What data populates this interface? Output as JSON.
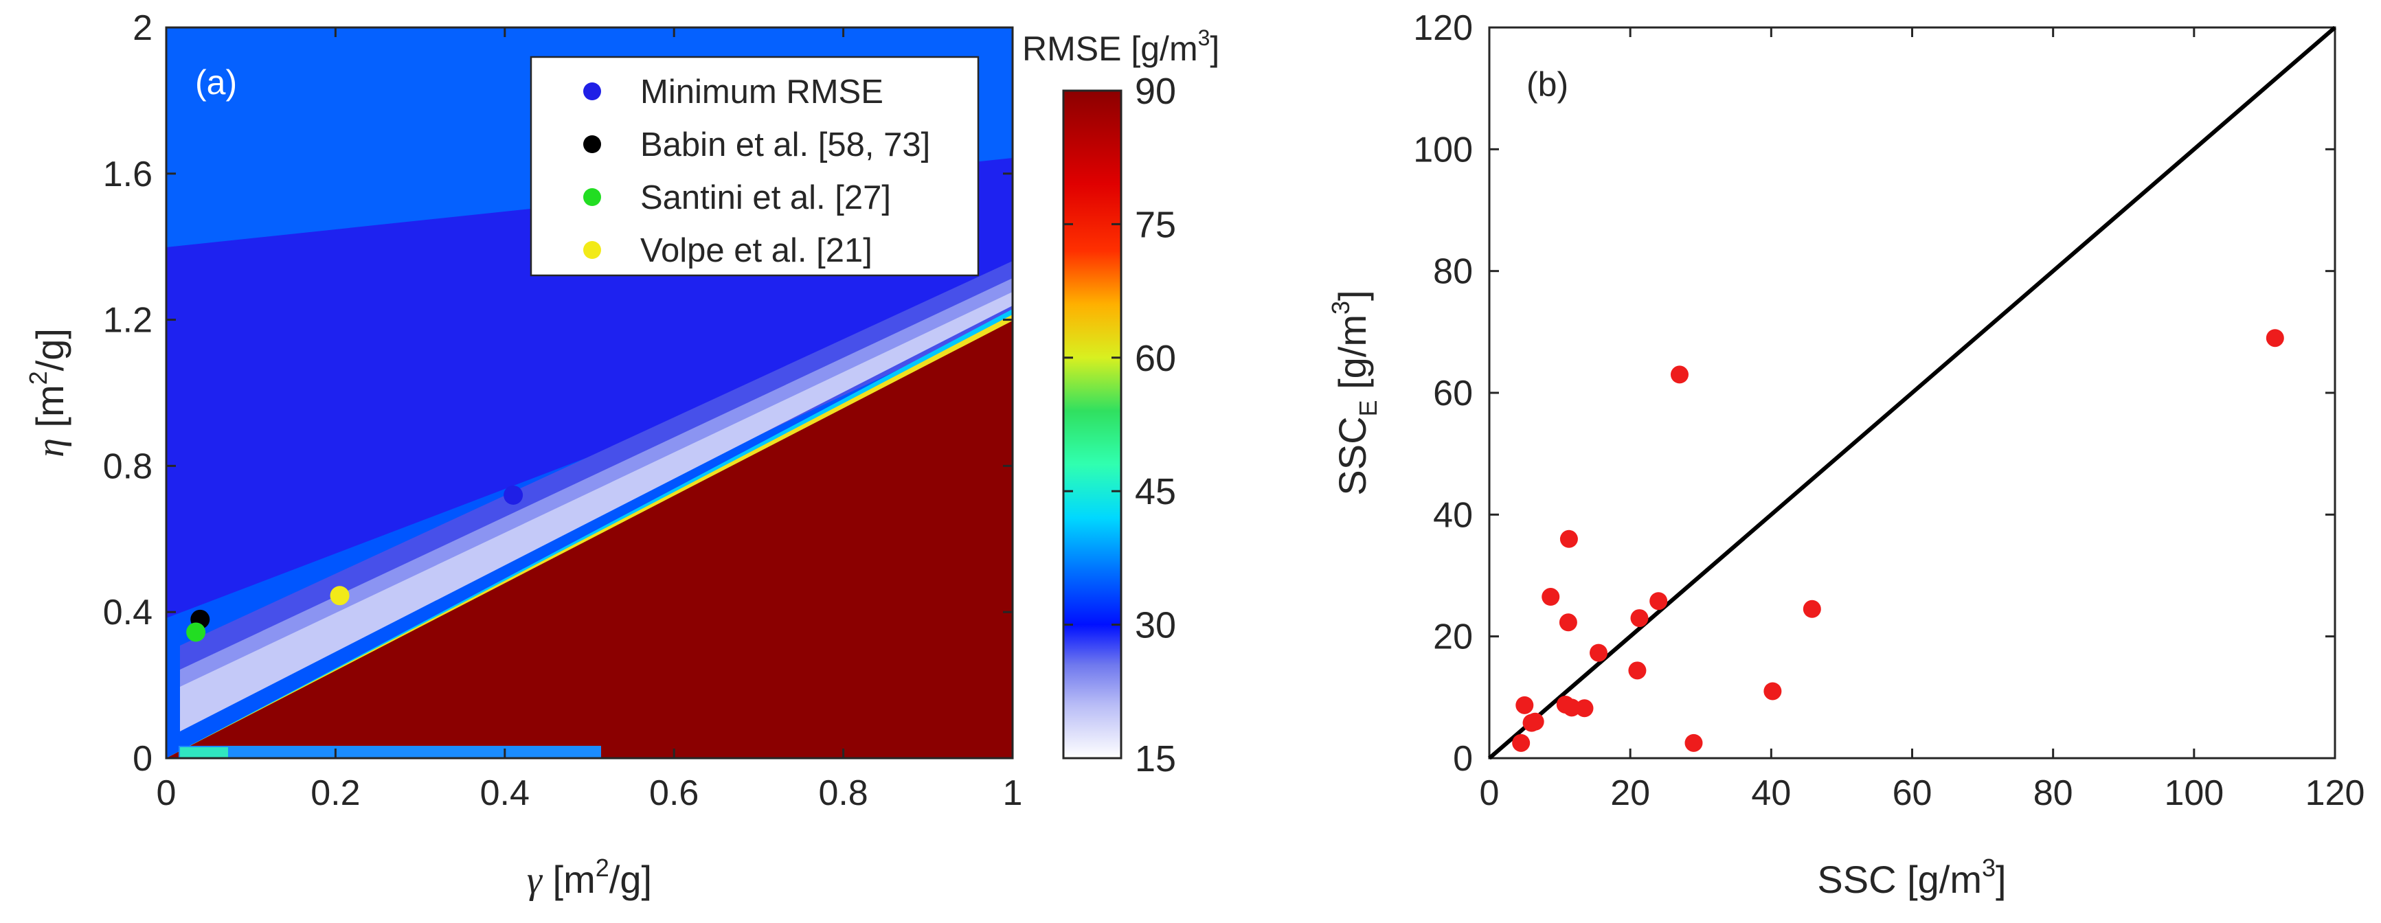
{
  "chart_data": [
    {
      "type": "heatmap",
      "panel_label": "(a)",
      "xlabel_symbol": "γ",
      "xlabel_unit": " [m",
      "xlabel_unit_tail": "/g]",
      "ylabel_symbol": "η",
      "ylabel_unit": " [m",
      "ylabel_unit_tail": "/g]",
      "unit_sup": "2",
      "xlim": [
        0,
        1
      ],
      "ylim": [
        0,
        2
      ],
      "xticks": [
        0,
        0.2,
        0.4,
        0.6,
        0.8,
        1
      ],
      "xtick_labels": [
        "0",
        "0.2",
        "0.4",
        "0.6",
        "0.8",
        "1"
      ],
      "yticks": [
        0,
        0.4,
        0.8,
        1.2,
        1.6,
        2
      ],
      "ytick_labels": [
        "0",
        "0.4",
        "0.8",
        "1.2",
        "1.6",
        "2"
      ],
      "description": "RMSE surface; saturates at 90 below the line eta = 1.14 * gamma, minimum valley above it",
      "colorbar": {
        "title_main": "RMSE [g/m",
        "title_sup": "3",
        "title_end": "]",
        "range": [
          15,
          90
        ],
        "ticks": [
          15,
          30,
          45,
          60,
          75,
          90
        ],
        "tick_labels": [
          "15",
          "30",
          "45",
          "60",
          "75",
          "90"
        ]
      },
      "points": [
        {
          "name": "Minimum RMSE",
          "gamma": 0.41,
          "eta": 0.72,
          "color": "#1f1fe6"
        },
        {
          "name": "Babin et al. [58, 73]",
          "gamma": 0.04,
          "eta": 0.38,
          "color": "#000000"
        },
        {
          "name": "Santini et al. [27]",
          "gamma": 0.035,
          "eta": 0.345,
          "color": "#22dd22"
        },
        {
          "name": "Volpe et al. [21]",
          "gamma": 0.205,
          "eta": 0.445,
          "color": "#f2ea18"
        }
      ]
    },
    {
      "type": "scatter",
      "panel_label": "(b)",
      "xlabel_main": "SSC [g/m",
      "xlabel_sup": "3",
      "xlabel_end": "]",
      "ylabel_main": "SSC",
      "ylabel_sub": "E",
      "ylabel_unit": " [g/m",
      "ylabel_sup": "3",
      "ylabel_end": "]",
      "xlim": [
        0,
        120
      ],
      "ylim": [
        0,
        120
      ],
      "xticks": [
        0,
        20,
        40,
        60,
        80,
        100,
        120
      ],
      "xtick_labels": [
        "0",
        "20",
        "40",
        "60",
        "80",
        "100",
        "120"
      ],
      "yticks": [
        0,
        20,
        40,
        60,
        80,
        100,
        120
      ],
      "ytick_labels": [
        "0",
        "20",
        "40",
        "60",
        "80",
        "100",
        "120"
      ],
      "reference_line": {
        "from": [
          0,
          0
        ],
        "to": [
          120,
          120
        ],
        "color": "#000000"
      },
      "marker_color": "#ee1c1c",
      "points": [
        {
          "x": 4.5,
          "y": 2.5
        },
        {
          "x": 5,
          "y": 8.7
        },
        {
          "x": 6,
          "y": 5.8
        },
        {
          "x": 6.5,
          "y": 6
        },
        {
          "x": 8.7,
          "y": 26.5
        },
        {
          "x": 10.8,
          "y": 8.8
        },
        {
          "x": 11.2,
          "y": 22.3
        },
        {
          "x": 11.3,
          "y": 36
        },
        {
          "x": 11.7,
          "y": 8.3
        },
        {
          "x": 13.5,
          "y": 8.2
        },
        {
          "x": 15.5,
          "y": 17.3
        },
        {
          "x": 21,
          "y": 14.4
        },
        {
          "x": 21.3,
          "y": 23
        },
        {
          "x": 24,
          "y": 25.8
        },
        {
          "x": 27,
          "y": 63
        },
        {
          "x": 29,
          "y": 2.5
        },
        {
          "x": 40.2,
          "y": 11
        },
        {
          "x": 45.8,
          "y": 24.5
        },
        {
          "x": 111.5,
          "y": 69
        }
      ]
    }
  ]
}
